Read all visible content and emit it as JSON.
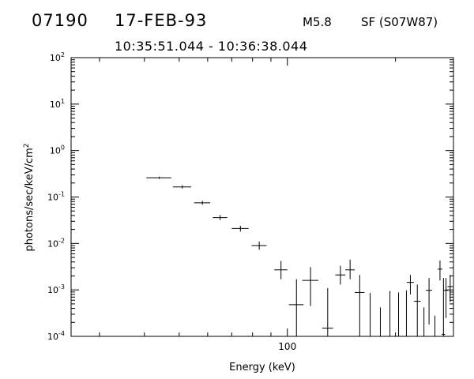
{
  "header": {
    "event_id": "07190",
    "date": "17-FEB-93",
    "flare_class": "M5.8",
    "location": "SF (S07W87)",
    "time_range": "10:35:51.044 - 10:36:38.044"
  },
  "chart_data": {
    "type": "scatter",
    "xlabel": "Energy (keV)",
    "ylabel": "photons/sec/keV/cm²",
    "ylabel_base": "photons/sec/keV/cm",
    "ylabel_sup": "2",
    "x_scale": "log",
    "y_scale": "log",
    "xlim": [
      25,
      290
    ],
    "ylim": [
      0.0001,
      100
    ],
    "x_tick_labels": [
      {
        "value": 100,
        "label": "100"
      }
    ],
    "y_tick_labels": [
      {
        "value": 0.0001,
        "base": "10",
        "exp": "-4"
      },
      {
        "value": 0.001,
        "base": "10",
        "exp": "-3"
      },
      {
        "value": 0.01,
        "base": "10",
        "exp": "-2"
      },
      {
        "value": 0.1,
        "base": "10",
        "exp": "-1"
      },
      {
        "value": 1,
        "base": "10",
        "exp": "0"
      },
      {
        "value": 10,
        "base": "10",
        "exp": "1"
      },
      {
        "value": 100,
        "base": "10",
        "exp": "2"
      }
    ],
    "grid": false,
    "points": [
      {
        "x": 44.0,
        "y": 0.26,
        "xlo": 40.5,
        "xhi": 47.5,
        "ylo": 0.245,
        "yhi": 0.275
      },
      {
        "x": 51.0,
        "y": 0.165,
        "xlo": 48.0,
        "xhi": 54.0,
        "ylo": 0.152,
        "yhi": 0.178
      },
      {
        "x": 58.0,
        "y": 0.075,
        "xlo": 55.0,
        "xhi": 61.0,
        "ylo": 0.068,
        "yhi": 0.083
      },
      {
        "x": 65.0,
        "y": 0.036,
        "xlo": 62.0,
        "xhi": 68.0,
        "ylo": 0.032,
        "yhi": 0.041
      },
      {
        "x": 74.0,
        "y": 0.021,
        "xlo": 70.0,
        "xhi": 78.0,
        "ylo": 0.018,
        "yhi": 0.024
      },
      {
        "x": 83.5,
        "y": 0.009,
        "xlo": 79.5,
        "xhi": 87.5,
        "ylo": 0.0073,
        "yhi": 0.011
      },
      {
        "x": 96.0,
        "y": 0.0027,
        "xlo": 92.0,
        "xhi": 100.0,
        "ylo": 0.0017,
        "yhi": 0.0042
      },
      {
        "x": 106.0,
        "y": 0.00048,
        "xlo": 101.0,
        "xhi": 111.0,
        "ylo": 0.0001,
        "yhi": 0.0017
      },
      {
        "x": 116.0,
        "y": 0.0016,
        "xlo": 110.0,
        "xhi": 122.0,
        "ylo": 0.00045,
        "yhi": 0.0031
      },
      {
        "x": 129.5,
        "y": 0.00015,
        "xlo": 125.0,
        "xhi": 134.0,
        "ylo": 0.0001,
        "yhi": 0.0011
      },
      {
        "x": 140.5,
        "y": 0.0021,
        "xlo": 136.0,
        "xhi": 145.0,
        "ylo": 0.0013,
        "yhi": 0.0033
      },
      {
        "x": 149.5,
        "y": 0.0027,
        "xlo": 145.0,
        "xhi": 154.0,
        "ylo": 0.0017,
        "yhi": 0.0045
      },
      {
        "x": 159.0,
        "y": 0.00088,
        "xlo": 154.0,
        "xhi": 164.0,
        "ylo": 0.0001,
        "yhi": 0.0021
      },
      {
        "x": 170.0,
        "y": 0.0001,
        "xlo": 170.0,
        "xhi": 170.0,
        "ylo": 0.0001,
        "yhi": 0.00086
      },
      {
        "x": 181.5,
        "y": 0.0001,
        "xlo": 181.5,
        "xhi": 181.5,
        "ylo": 0.0001,
        "yhi": 0.00042
      },
      {
        "x": 193.0,
        "y": 0.0001,
        "xlo": 193.0,
        "xhi": 193.0,
        "ylo": 0.0001,
        "yhi": 0.00095
      },
      {
        "x": 204.0,
        "y": 0.0001,
        "xlo": 204.0,
        "xhi": 204.0,
        "ylo": 0.0001,
        "yhi": 0.00088
      },
      {
        "x": 214.5,
        "y": 0.0001,
        "xlo": 214.5,
        "xhi": 214.5,
        "ylo": 0.0001,
        "yhi": 0.00098
      },
      {
        "x": 220.0,
        "y": 0.00145,
        "xlo": 215.0,
        "xhi": 225.0,
        "ylo": 0.0008,
        "yhi": 0.0021
      },
      {
        "x": 230.0,
        "y": 0.00057,
        "xlo": 225.0,
        "xhi": 235.0,
        "ylo": 0.0001,
        "yhi": 0.0013
      },
      {
        "x": 240.0,
        "y": 0.0001,
        "xlo": 240.0,
        "xhi": 240.0,
        "ylo": 0.0001,
        "yhi": 0.00042
      },
      {
        "x": 248.0,
        "y": 0.00098,
        "xlo": 243.0,
        "xhi": 253.0,
        "ylo": 0.00018,
        "yhi": 0.0018
      },
      {
        "x": 257.5,
        "y": 0.0001,
        "xlo": 257.5,
        "xhi": 257.5,
        "ylo": 0.0001,
        "yhi": 0.00028
      },
      {
        "x": 266.0,
        "y": 0.0028,
        "xlo": 262.0,
        "xhi": 270.0,
        "ylo": 0.0016,
        "yhi": 0.0043
      },
      {
        "x": 272.0,
        "y": 0.00011,
        "xlo": 269.0,
        "xhi": 275.0,
        "ylo": 0.0001,
        "yhi": 0.0018
      },
      {
        "x": 276.5,
        "y": 0.00098,
        "xlo": 272.5,
        "xhi": 280.5,
        "ylo": 0.00025,
        "yhi": 0.0018
      },
      {
        "x": 284.0,
        "y": 0.00118,
        "xlo": 279.0,
        "xhi": 289.0,
        "ylo": 0.00055,
        "yhi": 0.0021
      }
    ]
  }
}
